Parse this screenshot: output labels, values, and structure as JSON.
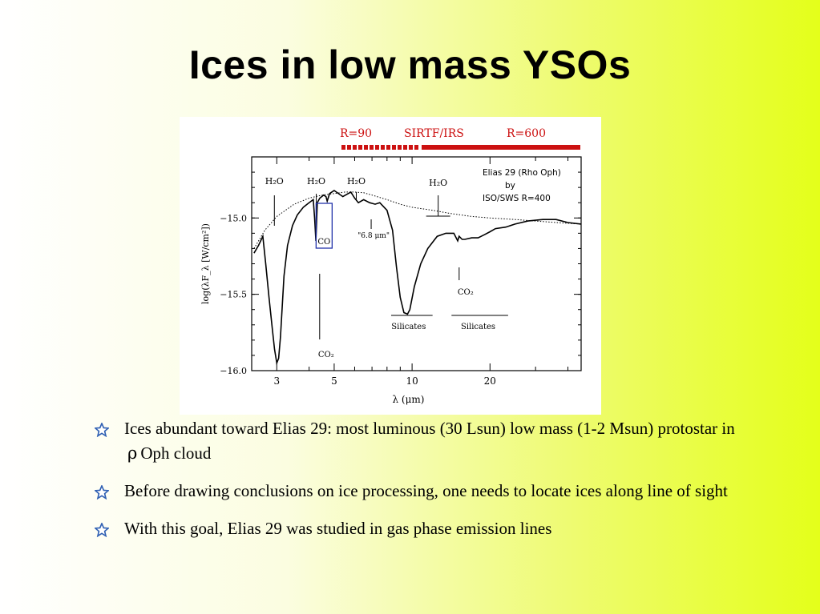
{
  "slide": {
    "title": "Ices in low mass YSOs"
  },
  "bullets": [
    {
      "text": "Ices abundant toward Elias 29: most luminous (30 Lsun) low mass (1-2 Msun) protostar in",
      "symbol": "ρ",
      "text_after": "Oph cloud"
    },
    {
      "text": "Before drawing conclusions on ice processing, one needs to locate ices along line of sight",
      "symbol": "",
      "text_after": ""
    },
    {
      "text": "With this goal, Elias 29 was studied in gas phase emission lines",
      "symbol": "",
      "text_after": ""
    }
  ],
  "colors": {
    "bullet_star": "#2f5fb3",
    "sirtf_bar": "#cc1111",
    "co_box": "#2233aa"
  },
  "chart_data": {
    "type": "line",
    "xlabel": "λ (μm)",
    "ylabel": "log(λF_λ [W/cm²])",
    "x_scale": "log",
    "xlim": [
      2.4,
      45
    ],
    "ylim": [
      -16.0,
      -14.6
    ],
    "x_ticks": [
      3,
      5,
      10,
      20
    ],
    "y_ticks": [
      -15.0,
      -15.5,
      -16.0
    ],
    "y_tick_labels": [
      "−15.0",
      "−15.5",
      "−16.0"
    ],
    "series": [
      {
        "style": "solid",
        "x": [
          2.45,
          2.55,
          2.65,
          2.72,
          2.8,
          2.88,
          2.94,
          3.0,
          3.05,
          3.1,
          3.15,
          3.2,
          3.3,
          3.45,
          3.6,
          3.8,
          4.0,
          4.15,
          4.2,
          4.25,
          4.27,
          4.3,
          4.4,
          4.55,
          4.65,
          4.7,
          4.8,
          5.0,
          5.4,
          5.8,
          6.0,
          6.2,
          6.5,
          6.85,
          7.2,
          7.5,
          8.0,
          8.4,
          8.7,
          9.0,
          9.3,
          9.6,
          9.8,
          10.2,
          10.8,
          11.5,
          12.5,
          13.5,
          14.5,
          15.0,
          15.2,
          15.6,
          16.0,
          17.0,
          18.0,
          19.0,
          20.0,
          21.0,
          23.0,
          25.0,
          28.0,
          32.0,
          36.0,
          40.0,
          45.0
        ],
        "y": [
          -15.23,
          -15.18,
          -15.12,
          -15.3,
          -15.52,
          -15.72,
          -15.86,
          -15.95,
          -15.92,
          -15.78,
          -15.58,
          -15.38,
          -15.18,
          -15.05,
          -14.98,
          -14.93,
          -14.9,
          -14.88,
          -15.0,
          -15.15,
          -15.05,
          -14.9,
          -14.87,
          -14.85,
          -14.86,
          -14.89,
          -14.84,
          -14.82,
          -14.86,
          -14.83,
          -14.87,
          -14.9,
          -14.88,
          -14.9,
          -14.91,
          -14.9,
          -14.95,
          -15.08,
          -15.32,
          -15.52,
          -15.62,
          -15.63,
          -15.6,
          -15.45,
          -15.3,
          -15.2,
          -15.12,
          -15.1,
          -15.1,
          -15.15,
          -15.12,
          -15.14,
          -15.14,
          -15.13,
          -15.13,
          -15.11,
          -15.09,
          -15.07,
          -15.06,
          -15.04,
          -15.02,
          -15.01,
          -15.01,
          -15.03,
          -15.04
        ]
      },
      {
        "style": "dotted",
        "x": [
          2.45,
          2.7,
          3.0,
          3.5,
          4.0,
          4.5,
          5.0,
          5.5,
          6.0,
          6.5,
          7.0,
          8.0,
          9.0,
          10.0,
          12.0,
          14.0,
          17.0,
          20.0,
          25.0,
          30.0,
          36.0,
          45.0
        ],
        "y": [
          -15.2,
          -15.08,
          -14.99,
          -14.91,
          -14.87,
          -14.85,
          -14.84,
          -14.83,
          -14.83,
          -14.835,
          -14.85,
          -14.88,
          -14.91,
          -14.93,
          -14.95,
          -14.97,
          -14.99,
          -15.0,
          -15.01,
          -15.02,
          -15.03,
          -15.04
        ]
      }
    ],
    "annotations": [
      {
        "label": "H₂O",
        "x": 3.0
      },
      {
        "label": "H₂O",
        "x": 4.45
      },
      {
        "label": "CO",
        "x": 4.67
      },
      {
        "label": "H₂O",
        "x": 6.0
      },
      {
        "label": "\"6.8 μm\"",
        "x": 6.85
      },
      {
        "label": "H₂O",
        "x": 12.0
      },
      {
        "label": "CO₂",
        "x": 15.2
      },
      {
        "label": "CO₂",
        "x": 4.27
      },
      {
        "label": "Silicates",
        "x": 9.7
      },
      {
        "label": "Silicates",
        "x": 18.0
      }
    ],
    "legend_text": [
      "Elias 29 (Rho Oph)",
      "by",
      "ISO/SWS R=400"
    ],
    "instrument_bar": {
      "label_left": "R=90",
      "label_mid": "SIRTF/IRS",
      "label_right": "R=600"
    }
  }
}
